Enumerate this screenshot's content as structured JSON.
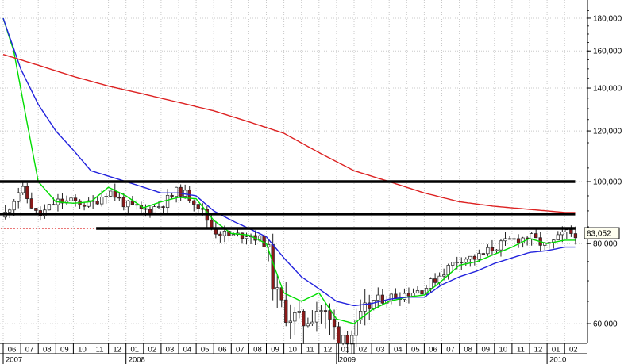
{
  "chart_data": {
    "type": "candlestick",
    "title": "",
    "xlabel": "",
    "ylabel": "",
    "y_scale": "log",
    "ylim": [
      54000,
      190000
    ],
    "grid": true,
    "y_ticks": [
      {
        "value": 180000,
        "label": "180,000"
      },
      {
        "value": 160000,
        "label": "160,000"
      },
      {
        "value": 140000,
        "label": "140,000"
      },
      {
        "value": 120000,
        "label": "120,000"
      },
      {
        "value": 100000,
        "label": "100,000"
      },
      {
        "value": 80000,
        "label": "80,000"
      },
      {
        "value": 60000,
        "label": "60,000"
      }
    ],
    "x_months": [
      "06",
      "07",
      "08",
      "09",
      "10",
      "11",
      "12",
      "01",
      "02",
      "03",
      "04",
      "05",
      "06",
      "07",
      "08",
      "09",
      "10",
      "11",
      "12",
      "01",
      "02",
      "03",
      "04",
      "05",
      "06",
      "07",
      "08",
      "09",
      "10",
      "11",
      "12",
      "01",
      "02"
    ],
    "x_years": [
      {
        "label": "2007",
        "start_month_index": 0
      },
      {
        "label": "2008",
        "start_month_index": 7
      },
      {
        "label": "2009",
        "start_month_index": 19
      },
      {
        "label": "2010",
        "start_month_index": 31
      }
    ],
    "last_value": {
      "value": 83052,
      "label": "83,052"
    },
    "series": [
      {
        "role": "price",
        "style": "candlestick",
        "close_anchors": [
          [
            0,
            88000
          ],
          [
            1,
            98000
          ],
          [
            2,
            88000
          ],
          [
            3,
            93000
          ],
          [
            4,
            93000
          ],
          [
            5,
            92000
          ],
          [
            6,
            97000
          ],
          [
            7,
            92000
          ],
          [
            8,
            90000
          ],
          [
            9,
            92000
          ],
          [
            10,
            97000
          ],
          [
            11,
            93000
          ],
          [
            12,
            84000
          ],
          [
            13,
            82000
          ],
          [
            14,
            83000
          ],
          [
            15,
            80000
          ],
          [
            15.5,
            67000
          ],
          [
            16,
            63000
          ],
          [
            17,
            60000
          ],
          [
            18,
            64000
          ],
          [
            19,
            58000
          ],
          [
            20,
            58000
          ],
          [
            21,
            65000
          ],
          [
            22,
            66000
          ],
          [
            23,
            67000
          ],
          [
            24,
            68000
          ],
          [
            25,
            72000
          ],
          [
            26,
            76000
          ],
          [
            27,
            76000
          ],
          [
            28,
            79000
          ],
          [
            29,
            81000
          ],
          [
            30,
            82000
          ],
          [
            31,
            79000
          ],
          [
            32,
            83052
          ]
        ]
      },
      {
        "role": "moving-average",
        "color": "#00dd00",
        "anchors": [
          [
            0,
            180000
          ],
          [
            0.6,
            160000
          ],
          [
            1.5,
            118000
          ],
          [
            2,
            100000
          ],
          [
            3,
            93000
          ],
          [
            4,
            92500
          ],
          [
            5,
            93000
          ],
          [
            6,
            98000
          ],
          [
            7,
            95000
          ],
          [
            8,
            91000
          ],
          [
            9,
            93000
          ],
          [
            10,
            94500
          ],
          [
            11,
            94000
          ],
          [
            12,
            87000
          ],
          [
            13,
            83000
          ],
          [
            14,
            82500
          ],
          [
            15,
            80000
          ],
          [
            15.5,
            73000
          ],
          [
            16,
            67000
          ],
          [
            17,
            65000
          ],
          [
            18,
            67000
          ],
          [
            19,
            61000
          ],
          [
            20,
            60000
          ],
          [
            21,
            63000
          ],
          [
            22,
            65000
          ],
          [
            23,
            66000
          ],
          [
            24,
            66500
          ],
          [
            25,
            70000
          ],
          [
            26,
            74000
          ],
          [
            27,
            75000
          ],
          [
            28,
            77000
          ],
          [
            29,
            79000
          ],
          [
            30,
            81500
          ],
          [
            31,
            80000
          ],
          [
            32,
            81000
          ]
        ]
      },
      {
        "role": "moving-average",
        "color": "#2222dd",
        "anchors": [
          [
            0,
            180000
          ],
          [
            1,
            150000
          ],
          [
            2,
            132000
          ],
          [
            3,
            120000
          ],
          [
            4,
            112000
          ],
          [
            5,
            104000
          ],
          [
            6,
            102000
          ],
          [
            7,
            100000
          ],
          [
            8,
            98000
          ],
          [
            9,
            96000
          ],
          [
            10,
            96000
          ],
          [
            11,
            95000
          ],
          [
            12,
            90000
          ],
          [
            13,
            87000
          ],
          [
            14,
            84500
          ],
          [
            15,
            82000
          ],
          [
            16,
            76000
          ],
          [
            17,
            71000
          ],
          [
            18,
            68000
          ],
          [
            19,
            65000
          ],
          [
            20,
            64000
          ],
          [
            21,
            64500
          ],
          [
            22,
            65500
          ],
          [
            23,
            66000
          ],
          [
            24,
            66000
          ],
          [
            25,
            69000
          ],
          [
            26,
            71000
          ],
          [
            27,
            72500
          ],
          [
            28,
            74500
          ],
          [
            29,
            76000
          ],
          [
            30,
            77500
          ],
          [
            31,
            78000
          ],
          [
            32,
            79000
          ]
        ]
      },
      {
        "role": "moving-average",
        "color": "#dd2222",
        "anchors": [
          [
            0,
            158000
          ],
          [
            2,
            152000
          ],
          [
            4,
            146000
          ],
          [
            6,
            141000
          ],
          [
            8,
            137000
          ],
          [
            10,
            133000
          ],
          [
            12,
            129000
          ],
          [
            14,
            124000
          ],
          [
            16,
            119000
          ],
          [
            18,
            111000
          ],
          [
            20,
            104000
          ],
          [
            22,
            100000
          ],
          [
            24,
            96000
          ],
          [
            26,
            93000
          ],
          [
            28,
            91500
          ],
          [
            30,
            90500
          ],
          [
            32,
            89500
          ]
        ]
      }
    ],
    "annotations": [
      {
        "type": "hline",
        "value": 100000,
        "from_month_index": -0.3,
        "to_month_index": 32.6,
        "color": "#000000"
      },
      {
        "type": "hline",
        "value": 89000,
        "from_month_index": -0.3,
        "to_month_index": 32.6,
        "color": "#000000"
      },
      {
        "type": "hline",
        "value": 84500,
        "from_month_index": 5.3,
        "to_month_index": 32.6,
        "color": "#000000"
      },
      {
        "type": "dotted-hline",
        "value": 84500,
        "from_month_index": -0.5,
        "to_month_index": 5.3,
        "color": "#dd2222"
      }
    ]
  }
}
